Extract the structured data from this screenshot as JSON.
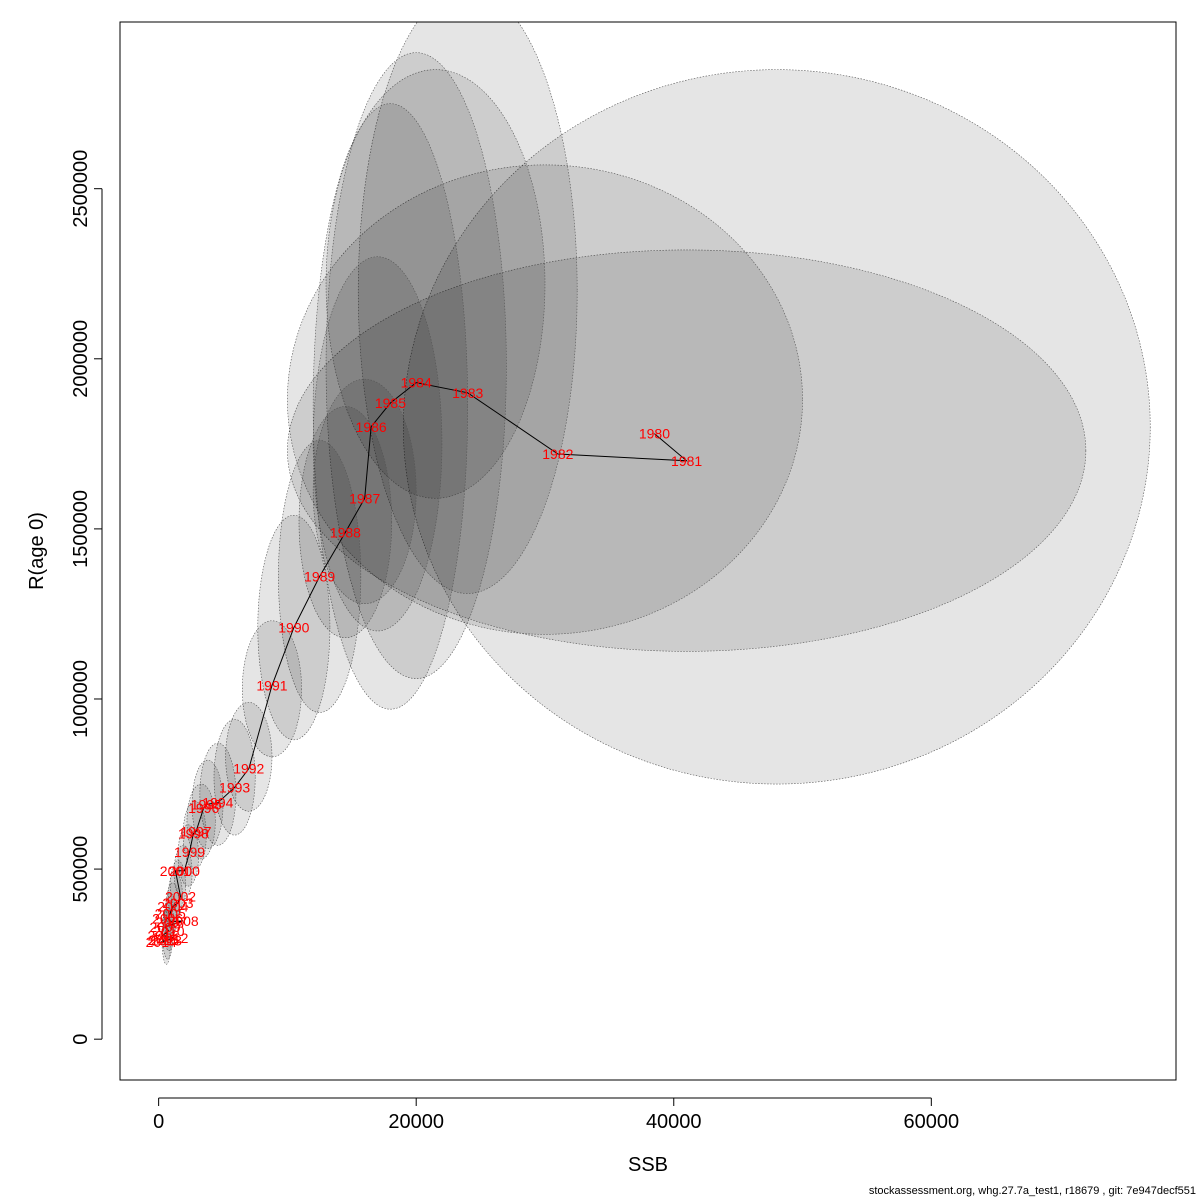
{
  "chart_data": {
    "type": "scatter",
    "title": "",
    "xlabel": "SSB",
    "ylabel": "R(age 0)",
    "xlim": [
      -3000,
      79000
    ],
    "ylim": [
      -120000,
      2990000
    ],
    "x_ticks": [
      0,
      20000,
      40000,
      60000
    ],
    "x_tick_labels": [
      "0",
      "20000",
      "40000",
      "60000"
    ],
    "y_ticks": [
      0,
      500000,
      1000000,
      1500000,
      2000000,
      2500000
    ],
    "y_tick_labels": [
      "0",
      "500000",
      "1000000",
      "1500000",
      "2000000",
      "2500000"
    ],
    "grid": false,
    "colors": {
      "label": "#ff0000",
      "line": "#000000",
      "ellipse_fill": "#000000",
      "ellipse_stroke": "#555555"
    },
    "points": [
      {
        "year": "1980",
        "x": 38500,
        "y": 1780000
      },
      {
        "year": "1981",
        "x": 41000,
        "y": 1700000
      },
      {
        "year": "1982",
        "x": 31000,
        "y": 1720000
      },
      {
        "year": "1983",
        "x": 24000,
        "y": 1900000
      },
      {
        "year": "1984",
        "x": 20000,
        "y": 1930000
      },
      {
        "year": "1985",
        "x": 18000,
        "y": 1870000
      },
      {
        "year": "1986",
        "x": 16500,
        "y": 1800000
      },
      {
        "year": "1987",
        "x": 16000,
        "y": 1590000
      },
      {
        "year": "1988",
        "x": 14500,
        "y": 1490000
      },
      {
        "year": "1989",
        "x": 12500,
        "y": 1360000
      },
      {
        "year": "1990",
        "x": 10500,
        "y": 1210000
      },
      {
        "year": "1991",
        "x": 8800,
        "y": 1040000
      },
      {
        "year": "1992",
        "x": 7000,
        "y": 795000
      },
      {
        "year": "1993",
        "x": 5900,
        "y": 740000
      },
      {
        "year": "1994",
        "x": 4600,
        "y": 695000
      },
      {
        "year": "1995",
        "x": 3700,
        "y": 690000
      },
      {
        "year": "1996",
        "x": 3500,
        "y": 680000
      },
      {
        "year": "1997",
        "x": 2900,
        "y": 610000
      },
      {
        "year": "1998",
        "x": 2700,
        "y": 605000
      },
      {
        "year": "1999",
        "x": 2400,
        "y": 550000
      },
      {
        "year": "2000",
        "x": 2000,
        "y": 495000
      },
      {
        "year": "2001",
        "x": 1300,
        "y": 495000
      },
      {
        "year": "2002",
        "x": 1700,
        "y": 420000
      },
      {
        "year": "2003",
        "x": 1500,
        "y": 400000
      },
      {
        "year": "2004",
        "x": 1100,
        "y": 390000
      },
      {
        "year": "2005",
        "x": 900,
        "y": 370000
      },
      {
        "year": "2006",
        "x": 700,
        "y": 355000
      },
      {
        "year": "2007",
        "x": 1000,
        "y": 345000
      },
      {
        "year": "2008",
        "x": 1900,
        "y": 348000
      },
      {
        "year": "2009",
        "x": 500,
        "y": 330000
      },
      {
        "year": "2010",
        "x": 800,
        "y": 318000
      },
      {
        "year": "2011",
        "x": 300,
        "y": 305000
      },
      {
        "year": "2012",
        "x": 1100,
        "y": 298000
      },
      {
        "year": "2013",
        "x": 600,
        "y": 290000
      },
      {
        "year": "2014",
        "x": 200,
        "y": 285000
      },
      {
        "year": "2015",
        "x": 400,
        "y": 292000
      }
    ],
    "ellipses": [
      {
        "cx": 48000,
        "cy": 1800000,
        "rx": 29000,
        "ry": 1050000
      },
      {
        "cx": 41000,
        "cy": 1730000,
        "rx": 31000,
        "ry": 590000
      },
      {
        "cx": 30000,
        "cy": 1880000,
        "rx": 20000,
        "ry": 690000
      },
      {
        "cx": 24000,
        "cy": 2200000,
        "rx": 8500,
        "ry": 890000
      },
      {
        "cx": 21500,
        "cy": 2220000,
        "rx": 8500,
        "ry": 630000
      },
      {
        "cx": 20000,
        "cy": 1980000,
        "rx": 7000,
        "ry": 920000
      },
      {
        "cx": 18000,
        "cy": 1860000,
        "rx": 6000,
        "ry": 890000
      },
      {
        "cx": 17000,
        "cy": 1750000,
        "rx": 5000,
        "ry": 550000
      },
      {
        "cx": 16000,
        "cy": 1610000,
        "rx": 4000,
        "ry": 330000
      },
      {
        "cx": 14500,
        "cy": 1520000,
        "rx": 3600,
        "ry": 340000
      },
      {
        "cx": 12500,
        "cy": 1360000,
        "rx": 3200,
        "ry": 400000
      },
      {
        "cx": 10500,
        "cy": 1210000,
        "rx": 2800,
        "ry": 330000
      },
      {
        "cx": 8800,
        "cy": 1030000,
        "rx": 2300,
        "ry": 200000
      },
      {
        "cx": 7000,
        "cy": 830000,
        "rx": 1800,
        "ry": 160000
      },
      {
        "cx": 5900,
        "cy": 770000,
        "rx": 1600,
        "ry": 170000
      },
      {
        "cx": 4600,
        "cy": 720000,
        "rx": 1400,
        "ry": 150000
      },
      {
        "cx": 3800,
        "cy": 690000,
        "rx": 1200,
        "ry": 130000
      },
      {
        "cx": 3300,
        "cy": 640000,
        "rx": 1100,
        "ry": 110000
      },
      {
        "cx": 2800,
        "cy": 600000,
        "rx": 900,
        "ry": 100000
      },
      {
        "cx": 2300,
        "cy": 540000,
        "rx": 800,
        "ry": 90000
      },
      {
        "cx": 1900,
        "cy": 490000,
        "rx": 700,
        "ry": 80000
      },
      {
        "cx": 1500,
        "cy": 450000,
        "rx": 600,
        "ry": 75000
      },
      {
        "cx": 1300,
        "cy": 420000,
        "rx": 550,
        "ry": 70000
      },
      {
        "cx": 1100,
        "cy": 390000,
        "rx": 500,
        "ry": 70000
      },
      {
        "cx": 900,
        "cy": 360000,
        "rx": 450,
        "ry": 70000
      },
      {
        "cx": 800,
        "cy": 330000,
        "rx": 400,
        "ry": 70000
      },
      {
        "cx": 700,
        "cy": 310000,
        "rx": 400,
        "ry": 75000
      },
      {
        "cx": 600,
        "cy": 300000,
        "rx": 350,
        "ry": 80000
      }
    ]
  },
  "footer": "stockassessment.org, whg.27.7a_test1, r18679 , git: 7e947decf551"
}
